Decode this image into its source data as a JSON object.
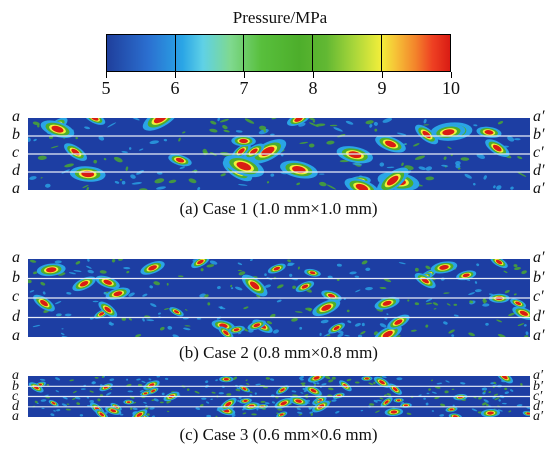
{
  "colorbar": {
    "title": "Pressure/MPa",
    "ticks": [
      "5",
      "6",
      "7",
      "8",
      "9",
      "10"
    ]
  },
  "rows": {
    "left": [
      "a",
      "b",
      "c",
      "d",
      "a"
    ],
    "right": [
      "a′",
      "b′",
      "c′",
      "d′",
      "a′"
    ]
  },
  "panels": [
    {
      "caption": "(a) Case 1 (1.0 mm×1.0 mm)"
    },
    {
      "caption": "(b) Case 2 (0.8 mm×0.8 mm)"
    },
    {
      "caption": "(c) Case 3 (0.6 mm×0.6 mm)"
    }
  ],
  "colors": {
    "background": "#1d3ea3",
    "low": "#2aa5e6",
    "mid": "#4dae2b",
    "high": "#f3ee3a",
    "peak": "#d91c14"
  }
}
